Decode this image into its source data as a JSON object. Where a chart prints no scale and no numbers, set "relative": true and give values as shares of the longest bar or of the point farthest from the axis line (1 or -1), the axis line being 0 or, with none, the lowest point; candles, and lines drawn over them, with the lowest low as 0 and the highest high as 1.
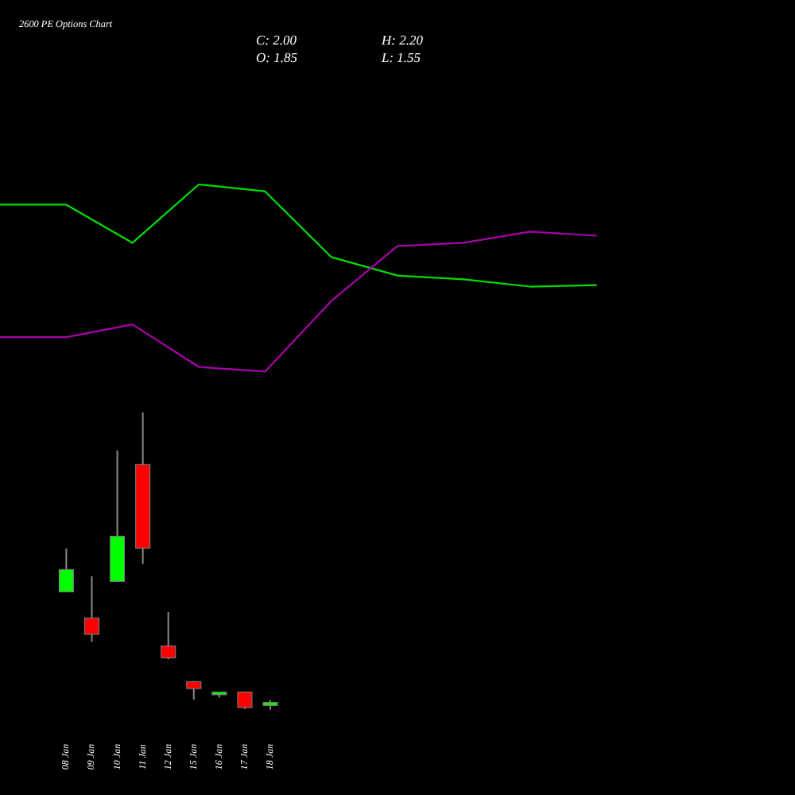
{
  "chart_data": [
    {
      "type": "line",
      "title": "2600 PE Options Chart",
      "annotations": [
        "C: 2.00",
        "H: 2.20",
        "O: 1.85",
        "L: 1.55"
      ],
      "categories": [
        null,
        null,
        null,
        null,
        null,
        null,
        null,
        null,
        null,
        null
      ],
      "relative": true,
      "tick_labels": false,
      "series": [
        {
          "color": "#00dd00",
          "values": [
            0.892,
            0.892,
            0.688,
            1,
            0.963,
            0.612,
            0.513,
            0.493,
            0.454,
            0.462
          ]
        },
        {
          "color": "#aa00aa",
          "values": [
            0.184,
            0.184,
            0.252,
            0.025,
            0,
            0.377,
            0.671,
            0.688,
            0.748,
            0.726
          ]
        }
      ]
    },
    {
      "type": "candlestick",
      "categories": [
        "08 Jan",
        "09 Jan",
        "10 Jan",
        "11 Jan",
        "12 Jan",
        "15 Jan",
        "16 Jan",
        "17 Jan",
        "18 Jan"
      ],
      "relative": true,
      "tick_labels": "x",
      "ohlc": [
        [
          0.396,
          0.542,
          0.396,
          0.471
        ],
        [
          0.308,
          0.449,
          0.228,
          0.253
        ],
        [
          0.431,
          0.872,
          0.431,
          0.583
        ],
        [
          0.824,
          1,
          0.49,
          0.543
        ],
        [
          0.214,
          0.328,
          0.169,
          0.174
        ],
        [
          0.094,
          0.096,
          0.034,
          0.071
        ],
        [
          0.05,
          0.059,
          0.041,
          0.059
        ],
        [
          0.059,
          0.059,
          0.002,
          0.007
        ],
        [
          0.014,
          0.032,
          0,
          0.024
        ]
      ],
      "colors": [
        "#00ff00",
        "#ff0000",
        "#00ff00",
        "#ff0000",
        "#ff0000",
        "#ff0000",
        "#00ff00",
        "#ff0000",
        "#00ff00"
      ]
    }
  ]
}
